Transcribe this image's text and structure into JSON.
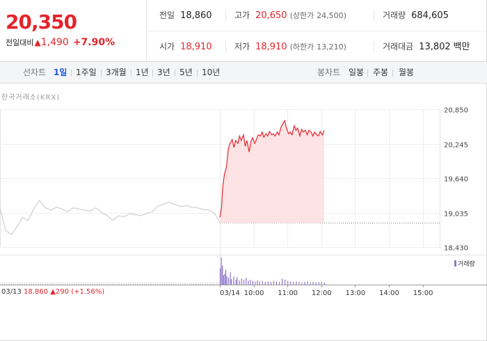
{
  "quote": {
    "price": "20,350",
    "change_label": "전일대비",
    "change_arrow": "▲",
    "change_value": "1,490",
    "change_pct": "+7.90%",
    "prev_close_label": "전일",
    "prev_close": "18,860",
    "high_label": "고가",
    "high": "20,650",
    "upper_limit_label": "(상한가",
    "upper_limit": "24,500)",
    "volume_label": "거래량",
    "volume": "684,605",
    "open_label": "시가",
    "open": "18,910",
    "low_label": "저가",
    "low": "18,910",
    "lower_limit_label": "(하한가",
    "lower_limit": "13,210)",
    "amount_label": "거래대금",
    "amount": "13,802",
    "amount_unit": "백만"
  },
  "tabs": {
    "line_header": "선차트",
    "line_items": [
      "1일",
      "1주일",
      "3개월",
      "1년",
      "3년",
      "5년",
      "10년"
    ],
    "active": "1일",
    "candle_header": "봉차트",
    "candle_items": [
      "일봉",
      "주봉",
      "월봉"
    ]
  },
  "source": "한국거래소(KRX)",
  "legend": "거래량",
  "prev_day": {
    "date": "03/13",
    "price": "18,860",
    "arrow": "▲",
    "change": "290",
    "pct": "(+1.56%)"
  },
  "colors": {
    "up": "#e4242b",
    "prev_line": "#cfcfcf",
    "volume": "#8a73c9",
    "fill": "#fde3e4"
  },
  "chart_data": {
    "type": "line",
    "ylim": [
      18430,
      20850
    ],
    "y_ticks": [
      20850,
      20245,
      19640,
      19035,
      18430
    ],
    "y_tick_labels": [
      "20,850",
      "20,245",
      "19,640",
      "19,035",
      "18,430"
    ],
    "x_tick_labels": [
      "03/14",
      "10:00",
      "11:00",
      "12:00",
      "13:00",
      "14:00",
      "15:00"
    ],
    "x_tick_minutes": [
      0,
      60,
      120,
      180,
      240,
      300,
      360
    ],
    "session_minutes": 390,
    "baseline": 18860,
    "series": [
      {
        "x_minutes": [
          0,
          3,
          5,
          8,
          12,
          15,
          18,
          22,
          25,
          28,
          32,
          35,
          38,
          42,
          45,
          48,
          52,
          55,
          58,
          62,
          65,
          68,
          72,
          75,
          78,
          82,
          85,
          88,
          92,
          95,
          98,
          102,
          105,
          108,
          112,
          115,
          118,
          122,
          125,
          128,
          132,
          135,
          138,
          142,
          145,
          148,
          152,
          155,
          158,
          162,
          165,
          168,
          172,
          175,
          178,
          182,
          185
        ],
        "values": [
          18950,
          19120,
          19480,
          19700,
          19850,
          20150,
          20250,
          20320,
          20180,
          20300,
          20250,
          20380,
          20300,
          20400,
          20200,
          20300,
          20100,
          20280,
          20350,
          20250,
          20320,
          20400,
          20380,
          20450,
          20360,
          20420,
          20380,
          20460,
          20400,
          20420,
          20380,
          20450,
          20400,
          20520,
          20600,
          20650,
          20520,
          20420,
          20450,
          20400,
          20560,
          20480,
          20520,
          20380,
          20500,
          20450,
          20480,
          20400,
          20480,
          20450,
          20380,
          20450,
          20400,
          20380,
          20460,
          20400,
          20480
        ]
      }
    ],
    "prev_series": {
      "x_minutes": [
        -390,
        -380,
        -370,
        -360,
        -350,
        -340,
        -330,
        -320,
        -310,
        -300,
        -290,
        -280,
        -270,
        -260,
        -250,
        -240,
        -230,
        -220,
        -210,
        -200,
        -190,
        -180,
        -170,
        -160,
        -150,
        -140,
        -130,
        -120,
        -110,
        -100,
        -90,
        -80,
        -70,
        -60,
        -50,
        -40,
        -30,
        -20,
        -10,
        0
      ],
      "values": [
        19120,
        18720,
        18650,
        18780,
        18950,
        18900,
        19100,
        19250,
        19120,
        19080,
        19130,
        19100,
        19050,
        19120,
        19100,
        19080,
        19060,
        19120,
        19040,
        18980,
        18900,
        18980,
        18960,
        19020,
        19000,
        18980,
        19020,
        19050,
        19150,
        19180,
        19220,
        19180,
        19140,
        19160,
        19130,
        19120,
        19090,
        19080,
        19030,
        18860
      ]
    },
    "volume": {
      "x_minutes": [
        0,
        2,
        4,
        6,
        8,
        10,
        12,
        15,
        18,
        20,
        24,
        28,
        30,
        34,
        38,
        42,
        46,
        50,
        54,
        58,
        62,
        66,
        70,
        75,
        80,
        85,
        90,
        95,
        100,
        105,
        110,
        115,
        120,
        125,
        130,
        135,
        140,
        145,
        150,
        155,
        160,
        165,
        170,
        175,
        180,
        185
      ],
      "values": [
        60,
        100,
        70,
        35,
        40,
        55,
        30,
        25,
        45,
        20,
        30,
        18,
        28,
        15,
        22,
        18,
        25,
        15,
        18,
        14,
        12,
        16,
        12,
        14,
        10,
        12,
        10,
        14,
        12,
        10,
        22,
        18,
        14,
        12,
        10,
        12,
        10,
        8,
        10,
        12,
        8,
        10,
        8,
        9,
        10,
        8
      ],
      "prev_values_level": 8
    }
  }
}
